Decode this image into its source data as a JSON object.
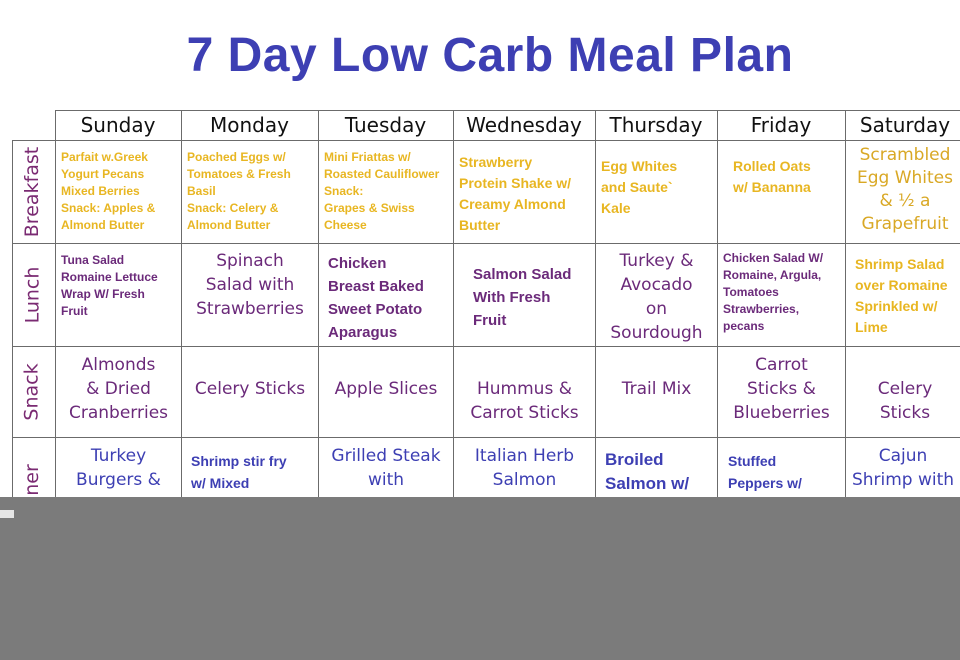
{
  "title": "7 Day Low Carb Meal Plan",
  "days": [
    "Sunday",
    "Monday",
    "Tuesday",
    "Wednesday",
    "Thursday",
    "Friday",
    "Saturday"
  ],
  "rows": {
    "breakfast": {
      "label": "Breakfast",
      "cells": [
        "Parfait w.Greek\nYogurt Pecans\nMixed Berries\nSnack: Apples &\nAlmond Butter",
        "Poached Eggs w/\nTomatoes & Fresh\nBasil\nSnack: Celery &\nAlmond Butter",
        "Mini Friattas w/\nRoasted Cauliflower\nSnack:\nGrapes & Swiss\nCheese",
        "Strawberry\nProtein Shake w/\nCreamy Almond\nButter",
        "Egg Whites\nand Saute`\nKale",
        "Rolled Oats\nw/ Bananna",
        "Scrambled\nEgg Whites\n& ½ a\nGrapefruit"
      ]
    },
    "lunch": {
      "label": "Lunch",
      "cells": [
        "Tuna Salad\nRomaine Lettuce\nWrap W/ Fresh\nFruit",
        "Spinach\nSalad with\nStrawberries",
        "Chicken\nBreast Baked\nSweet Potato\nAparagus",
        "Salmon Salad\nWith Fresh\nFruit",
        "Turkey &\nAvocado\non\nSourdough",
        "Chicken Salad W/\nRomaine, Argula,\nTomatoes\nStrawberries,\npecans",
        "Shrimp Salad\nover Romaine\nSprinkled w/\nLime"
      ]
    },
    "snack": {
      "label": "Snack",
      "cells": [
        "Almonds\n& Dried\nCranberries",
        "Celery Sticks",
        "Apple Slices",
        "Hummus &\nCarrot Sticks",
        "Trail Mix",
        "Carrot\nSticks &\nBlueberries",
        "Celery\nSticks"
      ]
    },
    "dinner": {
      "label": "ner",
      "cells": [
        "Turkey\nBurgers &",
        "Shrimp stir fry\nw/ Mixed",
        "Grilled Steak\nwith",
        "Italian Herb\nSalmon",
        "Broiled\nSalmon w/",
        "Stuffed\nPeppers w/",
        "Cajun\nShrimp with"
      ]
    }
  },
  "colors": {
    "title": "#3d3fb3",
    "label": "#7a2a72",
    "yellow": "#e8b622",
    "purple": "#6b2a7a",
    "blue": "#3d3fb3",
    "overlay": "#7b7b7b"
  }
}
